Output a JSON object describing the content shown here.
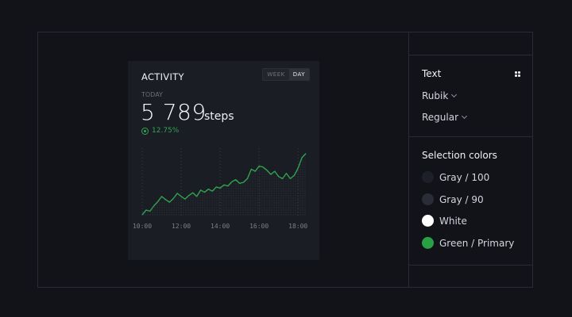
{
  "activity_card": {
    "title": "ACTIVITY",
    "toggle": {
      "week_label": "WEEK",
      "day_label": "DAY",
      "selected": "DAY"
    },
    "period_label": "TODAY",
    "value": "5 789",
    "unit": "steps",
    "change": "12.75%"
  },
  "inspector": {
    "text_section": {
      "title": "Text",
      "font_family": "Rubik",
      "font_weight": "Regular"
    },
    "colors_section": {
      "title": "Selection colors",
      "colors": [
        {
          "label": "Gray / 100",
          "hex": "#1e2029"
        },
        {
          "label": "Gray / 90",
          "hex": "#2a2d37"
        },
        {
          "label": "White",
          "hex": "#ffffff"
        },
        {
          "label": "Green / Primary",
          "hex": "#27a046"
        }
      ]
    }
  },
  "chart_data": {
    "type": "line",
    "x_ticks": [
      "10:00",
      "12:00",
      "14:00",
      "16:00",
      "18:00"
    ],
    "x": [
      10.0,
      10.2,
      10.4,
      10.6,
      10.8,
      11.0,
      11.2,
      11.4,
      11.6,
      11.8,
      12.0,
      12.2,
      12.4,
      12.6,
      12.8,
      13.0,
      13.2,
      13.4,
      13.6,
      13.8,
      14.0,
      14.2,
      14.4,
      14.6,
      14.8,
      15.0,
      15.2,
      15.4,
      15.6,
      15.8,
      16.0,
      16.2,
      16.4,
      16.6,
      16.8,
      17.0,
      17.2,
      17.4,
      17.6,
      17.8,
      18.0,
      18.2,
      18.4
    ],
    "values": [
      3,
      12,
      10,
      20,
      28,
      38,
      32,
      27,
      34,
      44,
      38,
      33,
      40,
      45,
      38,
      50,
      46,
      52,
      48,
      56,
      54,
      60,
      58,
      66,
      70,
      63,
      65,
      72,
      90,
      86,
      96,
      94,
      88,
      80,
      86,
      76,
      72,
      82,
      72,
      78,
      92,
      112,
      120
    ],
    "ylim": [
      0,
      130
    ],
    "grid": true,
    "color": "#2fa44f"
  }
}
